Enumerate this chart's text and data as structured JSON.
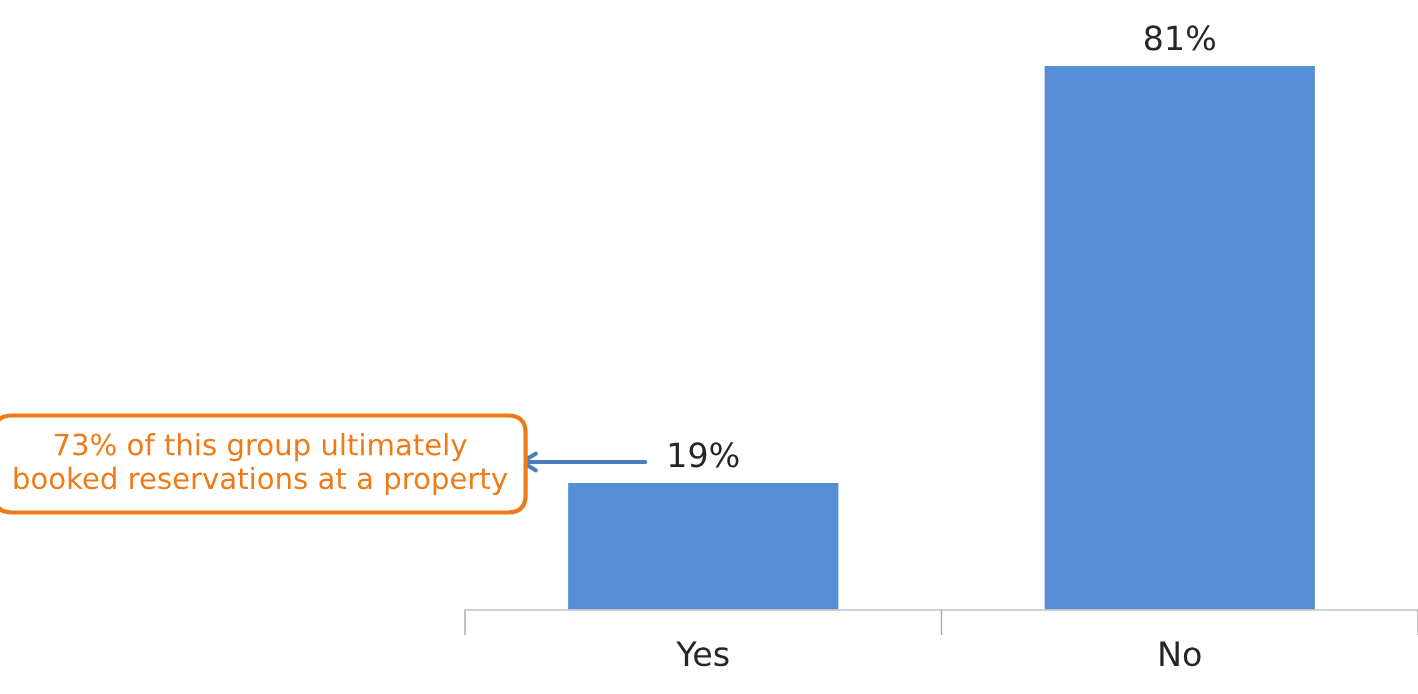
{
  "chart_data": {
    "type": "bar",
    "categories": [
      "Yes",
      "No"
    ],
    "values": [
      19,
      81
    ],
    "value_labels": [
      "19%",
      "81%"
    ],
    "color": "#558ed5",
    "tick_labels": "x",
    "annotations": [
      "73% of this group ultimately booked reservations at a property"
    ]
  }
}
